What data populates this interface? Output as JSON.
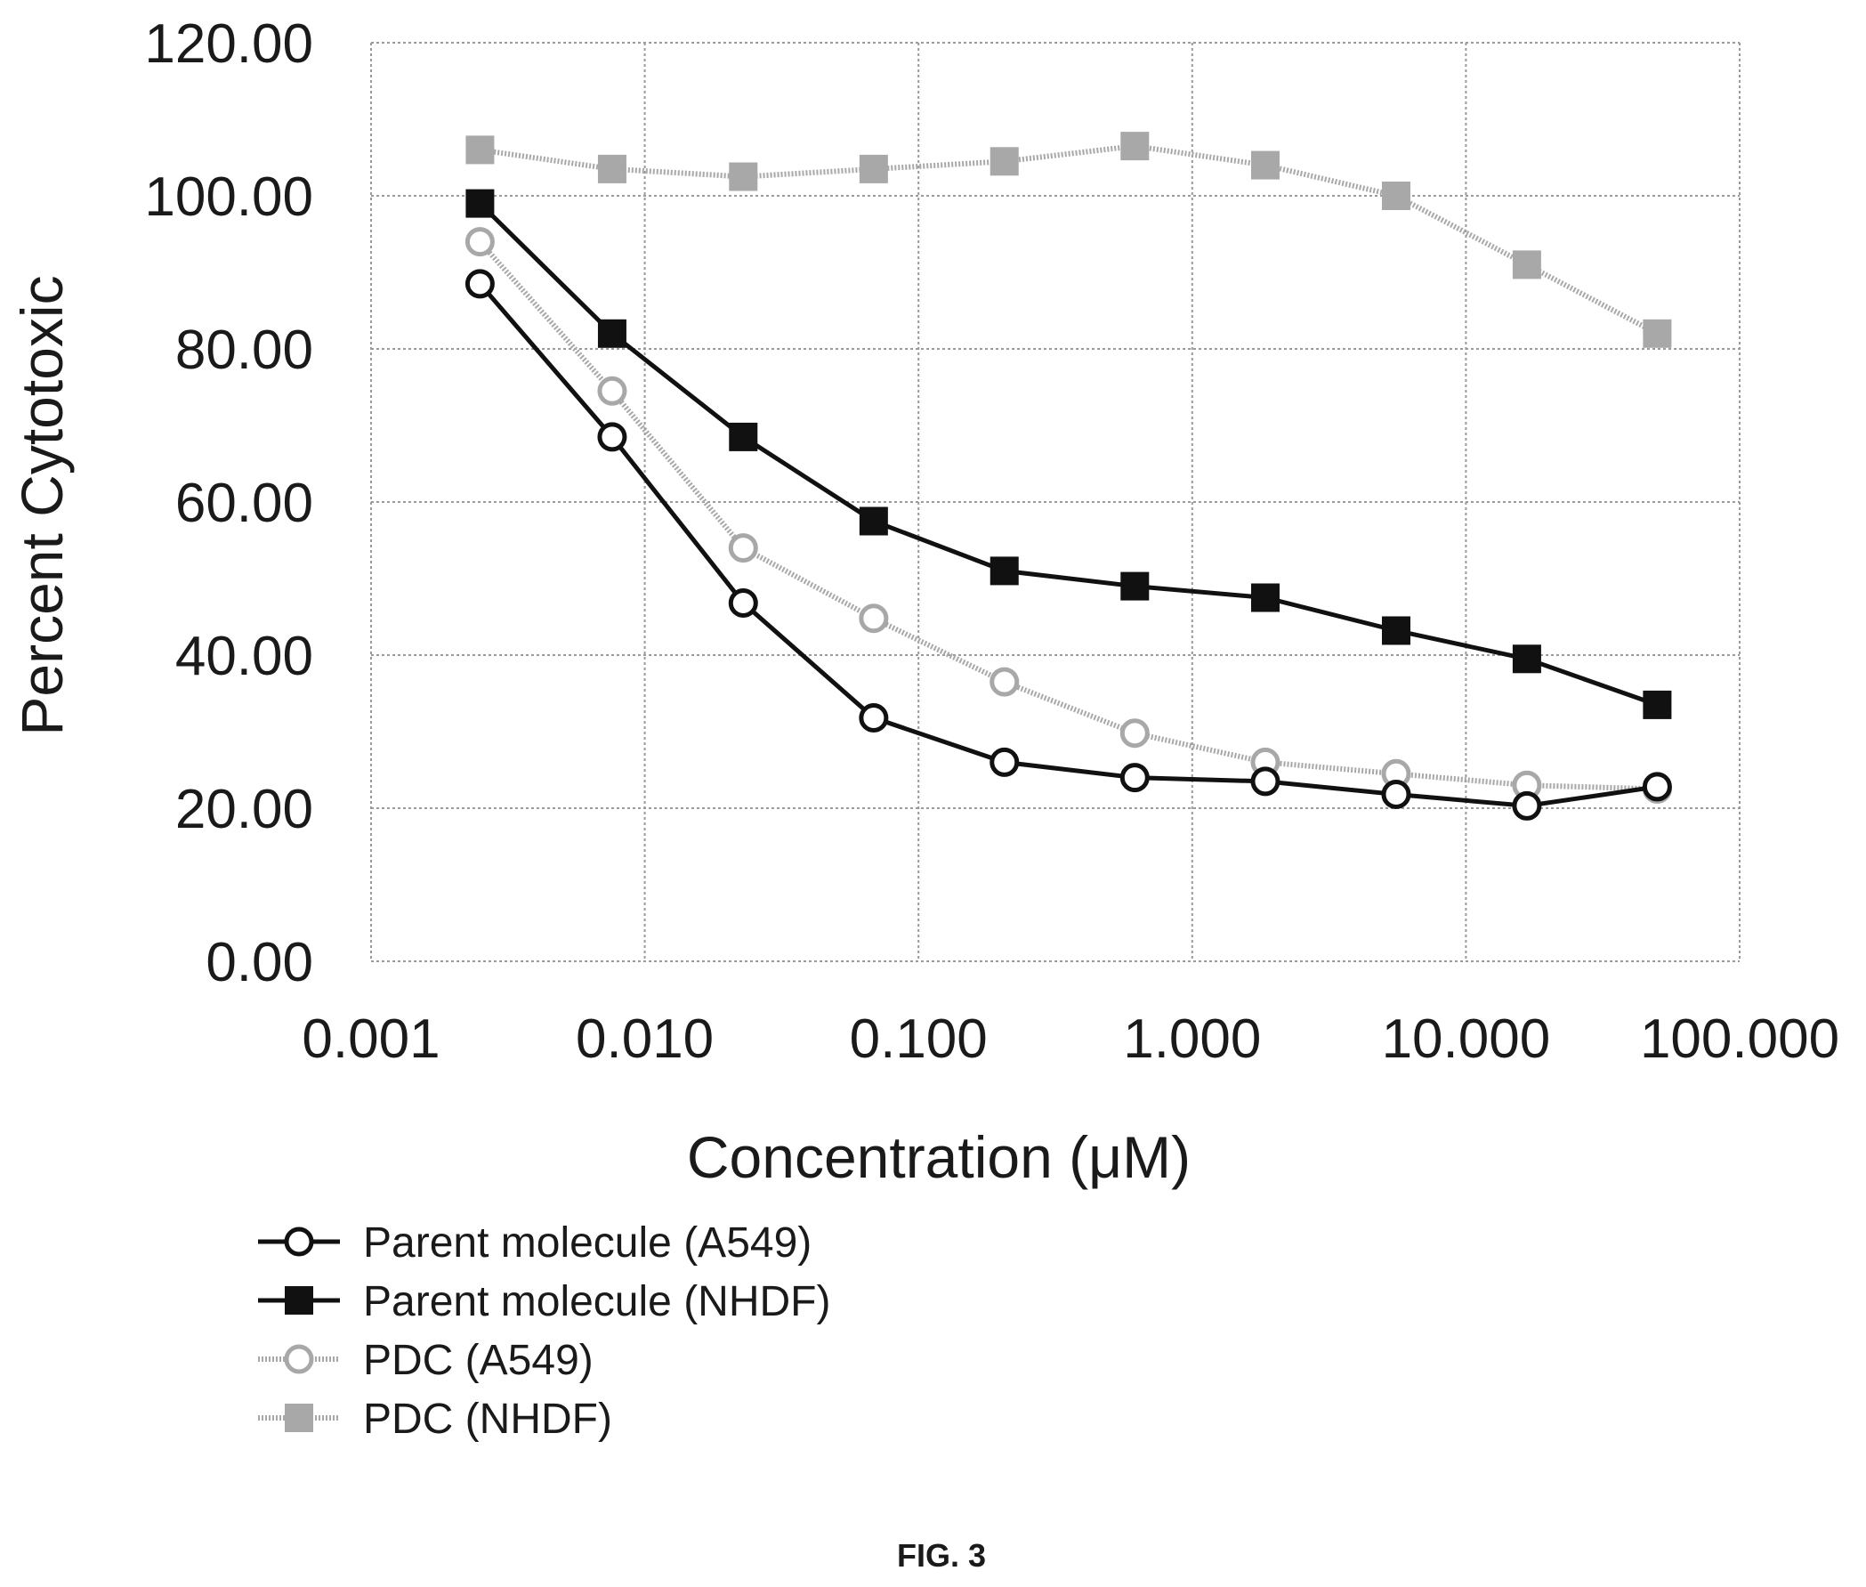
{
  "figure_label": "FIG. 3",
  "chart_data": {
    "type": "line",
    "xscale": "log",
    "xlim": [
      0.001,
      100
    ],
    "ylim": [
      0,
      120
    ],
    "xlabel": "Concentration (μM)",
    "ylabel": "Percent Cytotoxic",
    "grid": true,
    "legend_position": "bottom-left",
    "x_ticks": [
      0.001,
      0.01,
      0.1,
      1,
      10,
      100
    ],
    "x_tick_labels": [
      "0.001",
      "0.010",
      "0.100",
      "1.000",
      "10.000",
      "100.000"
    ],
    "y_ticks": [
      0,
      20,
      40,
      60,
      80,
      100,
      120
    ],
    "y_tick_labels": [
      "0.00",
      "20.00",
      "40.00",
      "60.00",
      "80.00",
      "100.00",
      "120.00"
    ],
    "x": [
      0.0025,
      0.0076,
      0.0229,
      0.0686,
      0.206,
      0.617,
      1.85,
      5.56,
      16.7,
      50
    ],
    "series": [
      {
        "name": "Parent molecule (A549)",
        "values": [
          88.5,
          68.5,
          46.8,
          31.8,
          26.0,
          24.0,
          23.5,
          21.8,
          20.3,
          22.8
        ],
        "color": "#111111",
        "marker": "open-circle",
        "line": "solid"
      },
      {
        "name": "Parent molecule (NHDF)",
        "values": [
          99.0,
          82.0,
          68.5,
          57.5,
          51.0,
          49.0,
          47.5,
          43.2,
          39.5,
          33.5
        ],
        "color": "#111111",
        "marker": "filled-square",
        "line": "solid"
      },
      {
        "name": "PDC (A549)",
        "values": [
          94.0,
          74.5,
          54.0,
          44.8,
          36.5,
          29.8,
          26.0,
          24.5,
          23.0,
          22.5
        ],
        "color": "#a8a8a8",
        "marker": "open-circle",
        "line": "dotted"
      },
      {
        "name": "PDC (NHDF)",
        "values": [
          106.0,
          103.5,
          102.5,
          103.5,
          104.5,
          106.5,
          104.0,
          100.0,
          91.0,
          82.0
        ],
        "color": "#a8a8a8",
        "marker": "filled-square",
        "line": "dotted"
      }
    ]
  }
}
